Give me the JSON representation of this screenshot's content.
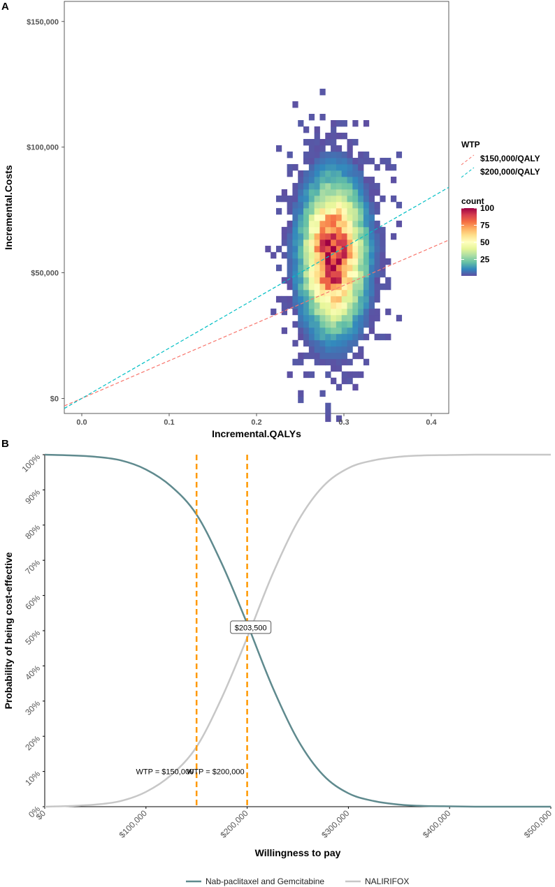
{
  "chart_data": [
    {
      "type": "heatmap",
      "panel_label": "A",
      "xlabel": "Incremental.QALYs",
      "ylabel": "Incremental.Costs",
      "xlim": [
        -0.02,
        0.42
      ],
      "ylim": [
        -6000,
        158000
      ],
      "x_ticks": [
        0.0,
        0.1,
        0.2,
        0.3,
        0.4
      ],
      "x_tick_labels": [
        "0.0",
        "0.1",
        "0.2",
        "0.3",
        "0.4"
      ],
      "y_ticks": [
        0,
        50000,
        100000,
        150000
      ],
      "y_tick_labels": [
        "$0",
        "$50,000",
        "$100,000",
        "$150,000"
      ],
      "density": {
        "center_qaly": 0.288,
        "center_cost": 57000,
        "sd_qaly": 0.021,
        "sd_cost": 17000,
        "bin_qaly": 0.00625,
        "bin_cost": 2500,
        "peak_count": 100
      },
      "wtp_legend": {
        "title": "WTP",
        "entries": [
          {
            "label": "$150,000/QALY",
            "slope": 150000,
            "color": "#F8766D"
          },
          {
            "label": "$200,000/QALY",
            "slope": 200000,
            "color": "#00BFC4"
          }
        ]
      },
      "count_legend": {
        "title": "count",
        "range": [
          1,
          100
        ],
        "tick_values": [
          25,
          50,
          75,
          100
        ],
        "tick_labels": [
          "25",
          "50",
          "75",
          "100"
        ],
        "palette": [
          "#5E4FA2",
          "#3288BD",
          "#66C2A5",
          "#ABDDA4",
          "#E6F598",
          "#FFFFBF",
          "#FEE08B",
          "#FDAE61",
          "#F46D43",
          "#D53E4F",
          "#9E0142"
        ]
      }
    },
    {
      "type": "line",
      "panel_label": "B",
      "xlabel": "Willingness to pay",
      "ylabel": "Probability of being cost-effective",
      "xlim": [
        0,
        500000
      ],
      "ylim": [
        0,
        1
      ],
      "x_ticks": [
        0,
        100000,
        200000,
        300000,
        400000,
        500000
      ],
      "x_tick_labels": [
        "$0",
        "$100,000",
        "$200,000",
        "$300,000",
        "$400,000",
        "$500,000"
      ],
      "y_ticks": [
        0,
        0.1,
        0.2,
        0.3,
        0.4,
        0.5,
        0.6,
        0.7,
        0.8,
        0.9,
        1.0
      ],
      "y_tick_labels": [
        "0%",
        "10%",
        "20%",
        "30%",
        "40%",
        "50%",
        "60%",
        "70%",
        "80%",
        "90%",
        "100%"
      ],
      "x": [
        0,
        25000,
        50000,
        75000,
        100000,
        125000,
        150000,
        175000,
        200000,
        225000,
        250000,
        275000,
        300000,
        325000,
        350000,
        375000,
        400000,
        425000,
        450000,
        475000,
        500000
      ],
      "series": [
        {
          "name": "Nab-paclitaxel and Gemcitabine",
          "color": "#5F8A8E",
          "values": [
            1.0,
            0.998,
            0.994,
            0.984,
            0.958,
            0.91,
            0.83,
            0.69,
            0.52,
            0.34,
            0.19,
            0.09,
            0.038,
            0.016,
            0.006,
            0.002,
            0.001,
            0.0,
            0.0,
            0.0,
            0.0
          ]
        },
        {
          "name": "NALIRIFOX",
          "color": "#C7C7C7",
          "values": [
            0.0,
            0.002,
            0.006,
            0.016,
            0.042,
            0.09,
            0.17,
            0.31,
            0.48,
            0.66,
            0.81,
            0.91,
            0.962,
            0.984,
            0.994,
            0.998,
            0.999,
            1.0,
            1.0,
            1.0,
            1.0
          ]
        }
      ],
      "vlines": [
        {
          "x": 150000,
          "label": "WTP = $150,000",
          "color": "#FF9900"
        },
        {
          "x": 200000,
          "label": "WTP = $200,000",
          "color": "#FF9900"
        }
      ],
      "crossover": {
        "x": 203500,
        "y": 0.5,
        "label": "$203,500"
      }
    }
  ]
}
